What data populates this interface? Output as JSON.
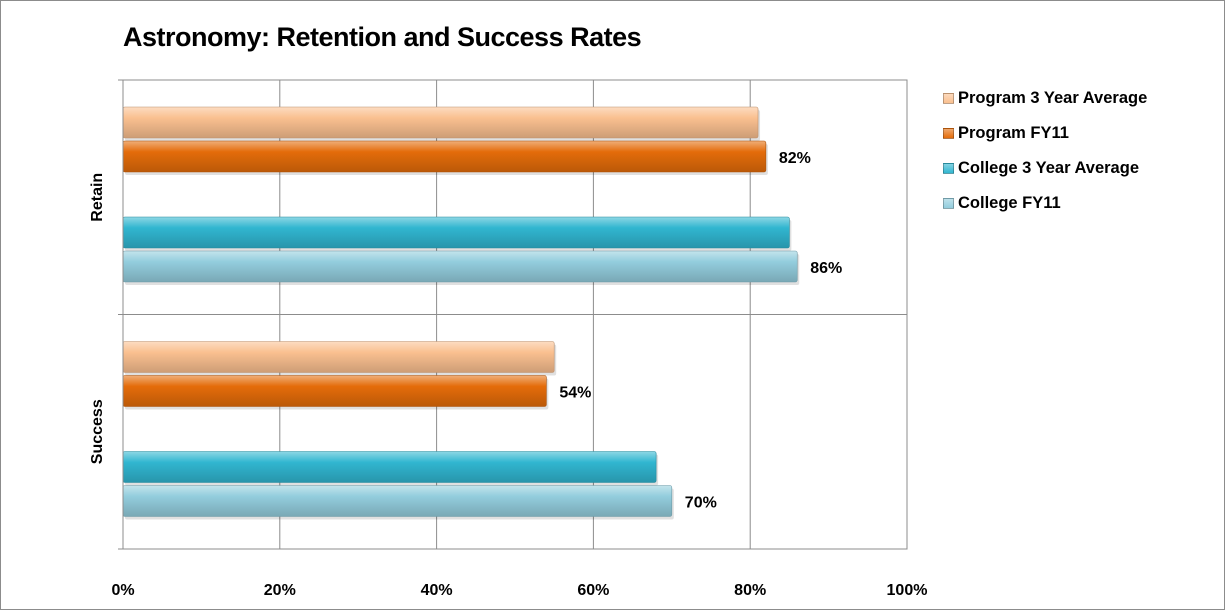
{
  "chart_data": {
    "type": "bar",
    "orientation": "horizontal",
    "title": "Astronomy: Retention and Success Rates",
    "xlabel": "",
    "ylabel": "",
    "xlim": [
      0,
      100
    ],
    "x_ticks": [
      "0%",
      "20%",
      "40%",
      "60%",
      "80%",
      "100%"
    ],
    "categories": [
      "Retain",
      "Success"
    ],
    "grid": true,
    "legend_position": "right",
    "series": [
      {
        "name": "Program 3 Year Average",
        "values": [
          81,
          55
        ],
        "color": "#fac090",
        "labels": [
          "",
          ""
        ]
      },
      {
        "name": "Program FY11",
        "values": [
          82,
          54
        ],
        "color": "#e46c0a",
        "labels": [
          "82%",
          "54%"
        ]
      },
      {
        "name": "College 3 Year Average",
        "values": [
          85,
          68
        ],
        "color": "#31b6d0",
        "labels": [
          "",
          ""
        ]
      },
      {
        "name": "College FY11",
        "values": [
          86,
          70
        ],
        "color": "#93cddd",
        "labels": [
          "86%",
          "70%"
        ]
      }
    ]
  }
}
